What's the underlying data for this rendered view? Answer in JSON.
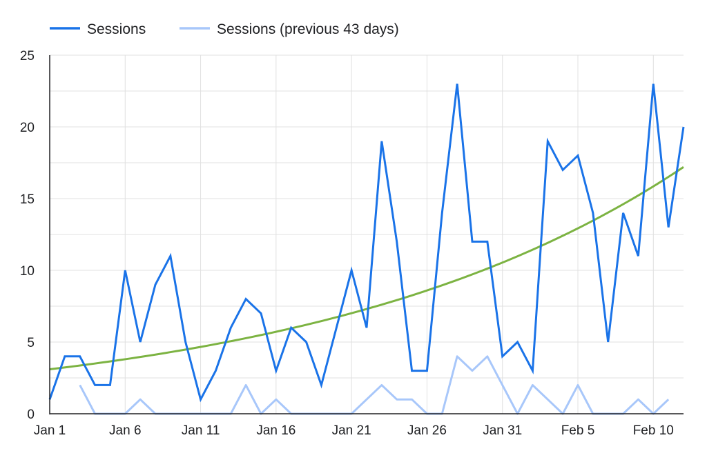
{
  "legend": {
    "current_label": "Sessions",
    "previous_label": "Sessions (previous 43 days)"
  },
  "colors": {
    "current": "#1a73e8",
    "previous": "#a8c7fa",
    "trend": "#7cb342",
    "grid": "#e0e0e0",
    "axis": "#202124"
  },
  "chart_data": {
    "type": "line",
    "x": [
      "Jan 1",
      "Jan 2",
      "Jan 3",
      "Jan 4",
      "Jan 5",
      "Jan 6",
      "Jan 7",
      "Jan 8",
      "Jan 9",
      "Jan 10",
      "Jan 11",
      "Jan 12",
      "Jan 13",
      "Jan 14",
      "Jan 15",
      "Jan 16",
      "Jan 17",
      "Jan 18",
      "Jan 19",
      "Jan 20",
      "Jan 21",
      "Jan 22",
      "Jan 23",
      "Jan 24",
      "Jan 25",
      "Jan 26",
      "Jan 27",
      "Jan 28",
      "Jan 29",
      "Jan 30",
      "Jan 31",
      "Feb 1",
      "Feb 2",
      "Feb 3",
      "Feb 4",
      "Feb 5",
      "Feb 6",
      "Feb 7",
      "Feb 8",
      "Feb 9",
      "Feb 10",
      "Feb 11",
      "Feb 12"
    ],
    "x_tick_labels": [
      "Jan 1",
      "Jan 6",
      "Jan 11",
      "Jan 16",
      "Jan 21",
      "Jan 26",
      "Jan 31",
      "Feb 5",
      "Feb 10"
    ],
    "y_tick_labels": [
      "0",
      "5",
      "10",
      "15",
      "20",
      "25"
    ],
    "ylim": [
      0,
      25
    ],
    "grid": true,
    "legend_position": "top-left",
    "series": [
      {
        "name": "Sessions",
        "values": [
          1,
          4,
          4,
          2,
          2,
          10,
          5,
          9,
          11,
          5,
          1,
          3,
          6,
          8,
          7,
          3,
          6,
          5,
          2,
          6,
          10,
          6,
          19,
          12,
          3,
          3,
          14,
          23,
          12,
          12,
          4,
          5,
          3,
          19,
          17,
          18,
          14,
          5,
          14,
          11,
          23,
          13,
          20
        ]
      },
      {
        "name": "Sessions (previous 43 days)",
        "values": [
          null,
          null,
          2,
          0,
          0,
          0,
          1,
          0,
          0,
          0,
          0,
          0,
          0,
          2,
          0,
          1,
          0,
          0,
          0,
          0,
          0,
          1,
          2,
          1,
          1,
          0,
          0,
          4,
          3,
          4,
          2,
          0,
          2,
          1,
          0,
          2,
          0,
          0,
          0,
          1,
          0,
          1,
          null
        ]
      }
    ],
    "trendline": {
      "type": "exponential",
      "start": 3.1,
      "end": 17.2
    }
  }
}
